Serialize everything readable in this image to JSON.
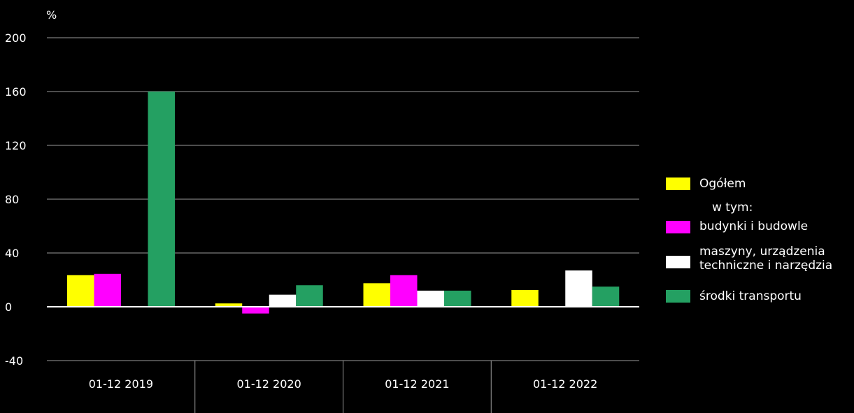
{
  "chart_data": {
    "type": "bar",
    "ylabel": "%",
    "ylim": [
      -40,
      200
    ],
    "yticks": [
      -40,
      0,
      40,
      80,
      120,
      160,
      200
    ],
    "categories": [
      "01-12 2019",
      "01-12 2020",
      "01-12 2021",
      "01-12 2022"
    ],
    "series": [
      {
        "name": "Ogółem",
        "color": "#ffff00",
        "values": [
          23.5,
          2.5,
          17.5,
          12.5
        ]
      },
      {
        "name": "budynki i budowle",
        "color": "#ff00ff",
        "values": [
          24.5,
          -5.0,
          23.5,
          null
        ]
      },
      {
        "name": "maszyny, urządzenia techniczne i narzędzia",
        "color": "#ffffff",
        "values": [
          null,
          9.0,
          12.0,
          27.0
        ]
      },
      {
        "name": "środki transportu",
        "color": "#24a062",
        "values": [
          160.0,
          16.0,
          12.0,
          15.0
        ]
      }
    ],
    "legend": {
      "position": "right",
      "subheader": "w tym:",
      "entries": [
        {
          "label": "Ogółem",
          "color": "#ffff00"
        },
        {
          "label": "budynki i budowle",
          "color": "#ff00ff"
        },
        {
          "label_lines": [
            "maszyny, urządzenia",
            "techniczne i narzędzia"
          ],
          "color": "#ffffff"
        },
        {
          "label": "środki transportu",
          "color": "#24a062"
        }
      ]
    },
    "grid": true
  }
}
